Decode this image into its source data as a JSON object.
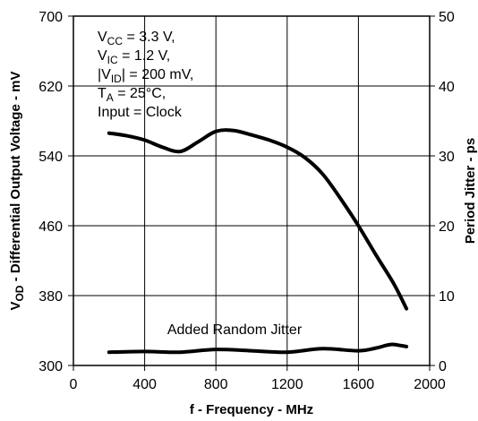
{
  "chart_data": {
    "type": "line",
    "xlabel": "f - Frequency - MHz",
    "ylabel_left": {
      "main": "V",
      "sub": "OD",
      "rest": " - Differential Output Voltage - mV"
    },
    "ylabel_right": "Period Jitter - ps",
    "xlim": [
      0,
      2000
    ],
    "ylim_left": [
      300,
      700
    ],
    "ylim_right": [
      0,
      50
    ],
    "grid": true,
    "x_ticks": [
      "0",
      "400",
      "800",
      "1200",
      "1600",
      "2000"
    ],
    "y_left_ticks": [
      "300",
      "380",
      "460",
      "540",
      "620",
      "700"
    ],
    "y_right_ticks": [
      "0",
      "10",
      "20",
      "30",
      "40",
      "50"
    ],
    "conditions": [
      {
        "main": "V",
        "sub": "CC",
        "rest": " = 3.3 V,"
      },
      {
        "main": "V",
        "sub": "IC",
        "rest": " = 1.2 V,"
      },
      {
        "main": "|V",
        "sub": "ID",
        "rest": "| = 200 mV,"
      },
      {
        "main": "T",
        "sub": "A",
        "rest": " = 25°C,"
      },
      {
        "main": "Input = Clock",
        "sub": "",
        "rest": ""
      }
    ],
    "annotation": "Added Random Jitter",
    "series": [
      {
        "axis": "left",
        "x": [
          200,
          300,
          400,
          500,
          600,
          700,
          800,
          900,
          1000,
          1100,
          1200,
          1300,
          1400,
          1500,
          1600,
          1700,
          1800,
          1870
        ],
        "values": [
          566,
          563,
          558,
          550,
          545,
          556,
          568,
          569,
          564,
          558,
          550,
          538,
          519,
          491,
          460,
          426,
          393,
          365
        ]
      },
      {
        "axis": "right",
        "x": [
          200,
          400,
          600,
          800,
          1000,
          1200,
          1400,
          1600,
          1700,
          1760,
          1800,
          1870
        ],
        "values": [
          1.9,
          2.0,
          1.9,
          2.3,
          2.1,
          1.9,
          2.4,
          2.1,
          2.5,
          2.9,
          3.0,
          2.7
        ]
      }
    ]
  }
}
